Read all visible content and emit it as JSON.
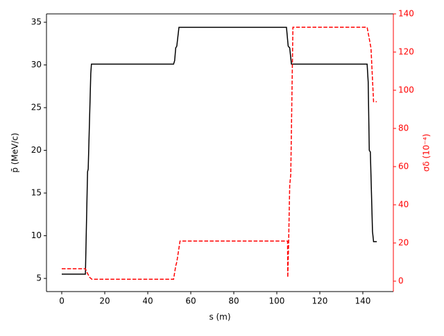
{
  "chart_data": {
    "type": "line",
    "x_label": "s (m)",
    "y_label": "p̄ (MeV/c)",
    "y2_label": "σδ  (10⁻⁴)",
    "xlim": [
      -7.1,
      154.2
    ],
    "xticks": [
      0,
      20,
      40,
      60,
      80,
      100,
      120,
      140
    ],
    "ylim": [
      3.46,
      35.98
    ],
    "yticks": [
      5,
      10,
      15,
      20,
      25,
      30,
      35
    ],
    "y2lim": [
      -5.45,
      140
    ],
    "y2ticks": [
      0,
      20,
      40,
      60,
      80,
      100,
      120,
      140
    ],
    "series": [
      {
        "color": "#000000",
        "dash": false,
        "x": [
          0,
          11,
          12,
          12.3,
          13.5,
          13.8,
          52,
          52.5,
          53,
          53.5,
          54.5,
          104.5,
          105,
          105.3,
          106,
          106.8,
          142,
          142.5,
          143,
          143.5,
          144.5,
          145,
          146.5
        ],
        "values": [
          5.5,
          5.5,
          17.5,
          17.8,
          29,
          30.1,
          30.1,
          30.5,
          32,
          32.2,
          34.4,
          34.4,
          33,
          32.2,
          32,
          30.1,
          30.1,
          28,
          20,
          19.8,
          10.5,
          9.3,
          9.3
        ]
      },
      {
        "color": "#ff0000",
        "dash": true,
        "axis": "y2",
        "x": [
          0,
          11,
          12,
          13,
          14,
          52,
          53,
          53.5,
          55,
          105,
          105.1,
          105.5,
          106,
          106.5,
          107.5,
          142,
          143,
          143.8,
          145,
          146.5
        ],
        "values": [
          6.5,
          6.5,
          4,
          2,
          1,
          1,
          8,
          10,
          21,
          21,
          2,
          20,
          50,
          56,
          133,
          133,
          127,
          122,
          94,
          94
        ]
      }
    ]
  }
}
